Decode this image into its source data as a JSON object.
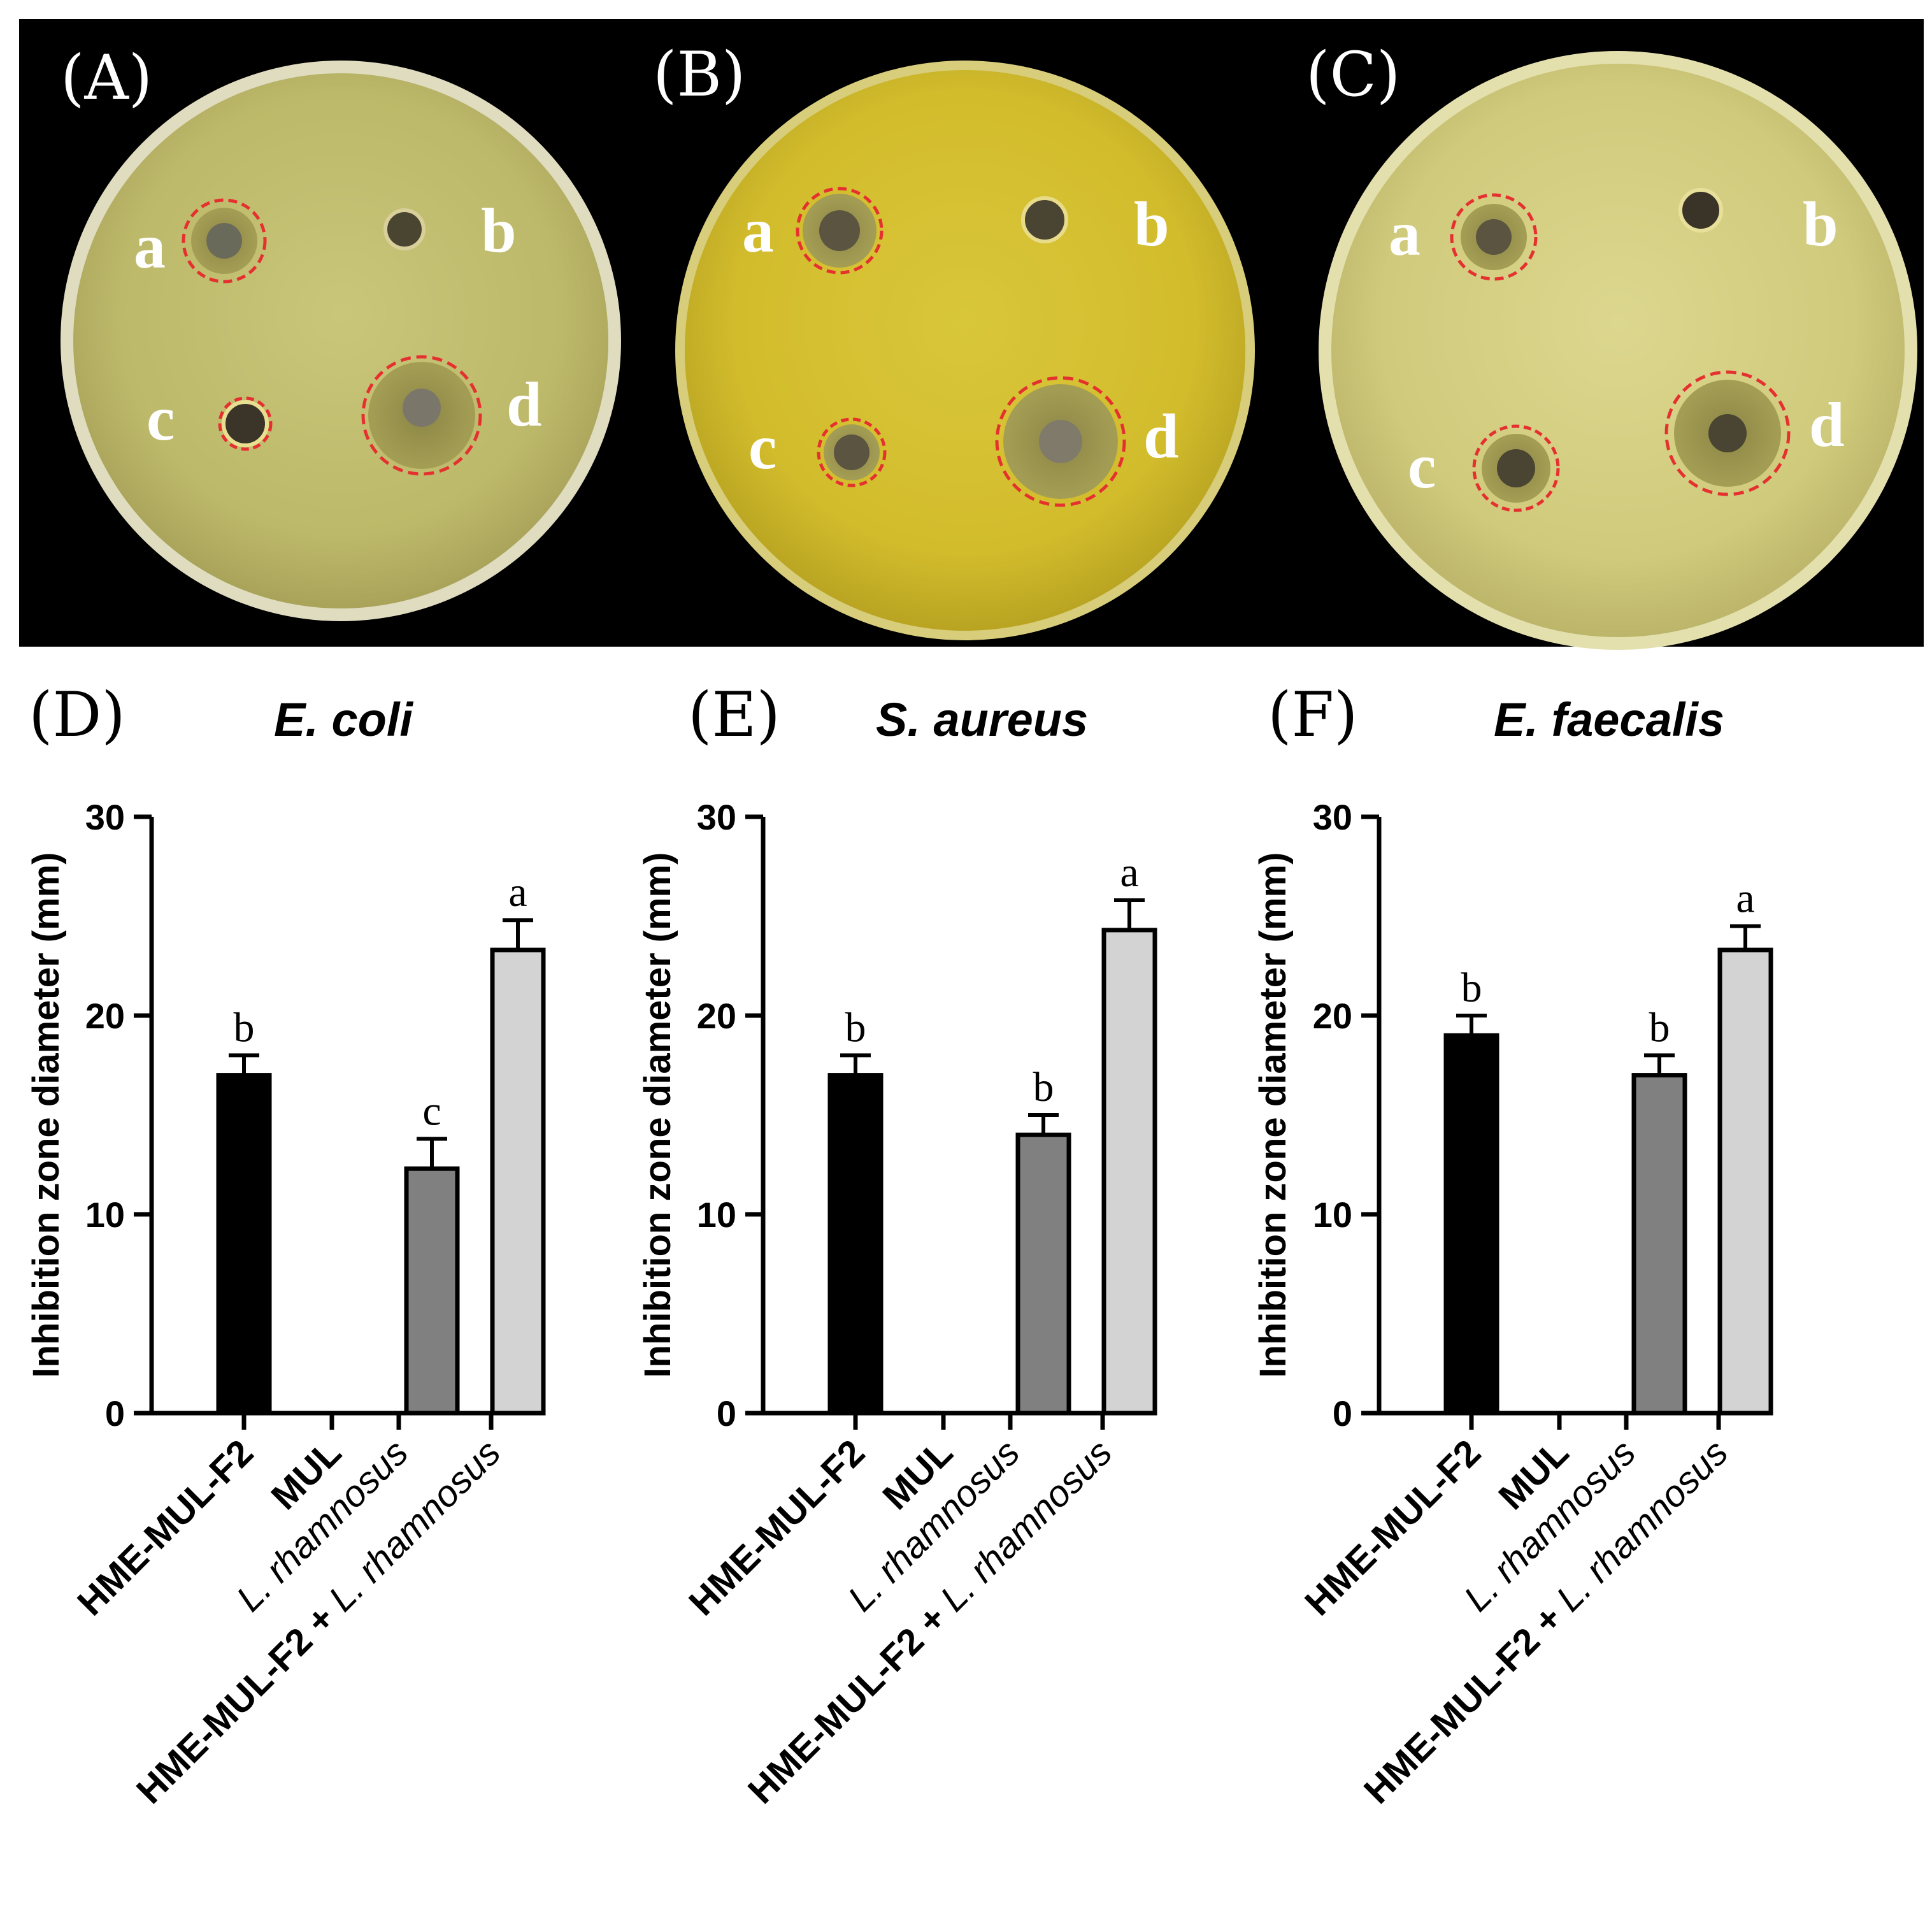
{
  "photos": {
    "panels": [
      {
        "label": "(A)",
        "wells": [
          "a",
          "b",
          "c",
          "d"
        ]
      },
      {
        "label": "(B)",
        "wells": [
          "a",
          "b",
          "c",
          "d"
        ]
      },
      {
        "label": "(C)",
        "wells": [
          "a",
          "b",
          "c",
          "d"
        ]
      }
    ],
    "colors": {
      "background": "#000000",
      "marker_circle": "#e53030"
    }
  },
  "chart_data": [
    {
      "type": "bar",
      "panel_label": "(D)",
      "title": "E. coli",
      "ylabel": "Inhibition zone diameter (mm)",
      "ylim": [
        0,
        30
      ],
      "yticks": [
        "0",
        "10",
        "20",
        "30"
      ],
      "categories": [
        "HME-MUL-F2",
        "MUL",
        "L. rhamnosus",
        "HME-MUL-F2 + L. rhamnosus"
      ],
      "values": [
        17.0,
        0,
        12.3,
        23.3
      ],
      "errors": [
        1.0,
        0,
        1.5,
        1.5
      ],
      "significance": [
        "b",
        "",
        "c",
        "a"
      ],
      "bar_colors": [
        "#000000",
        "#000000",
        "#808080",
        "#d3d3d3"
      ]
    },
    {
      "type": "bar",
      "panel_label": "(E)",
      "title": "S. aureus",
      "ylabel": "Inhibition zone diameter (mm)",
      "ylim": [
        0,
        30
      ],
      "yticks": [
        "0",
        "10",
        "20",
        "30"
      ],
      "categories": [
        "HME-MUL-F2",
        "MUL",
        "L. rhamnosus",
        "HME-MUL-F2 + L. rhamnosus"
      ],
      "values": [
        17.0,
        0,
        14.0,
        24.3
      ],
      "errors": [
        1.0,
        0,
        1.0,
        1.5
      ],
      "significance": [
        "b",
        "",
        "b",
        "a"
      ],
      "bar_colors": [
        "#000000",
        "#000000",
        "#808080",
        "#d3d3d3"
      ]
    },
    {
      "type": "bar",
      "panel_label": "(F)",
      "title": "E. faecalis",
      "ylabel": "Inhibition zone diameter (mm)",
      "ylim": [
        0,
        30
      ],
      "yticks": [
        "0",
        "10",
        "20",
        "30"
      ],
      "categories": [
        "HME-MUL-F2",
        "MUL",
        "L. rhamnosus",
        "HME-MUL-F2 + L. rhamnosus"
      ],
      "values": [
        19.0,
        0,
        17.0,
        23.3
      ],
      "errors": [
        1.0,
        0,
        1.0,
        1.2
      ],
      "significance": [
        "b",
        "",
        "b",
        "a"
      ],
      "bar_colors": [
        "#000000",
        "#000000",
        "#808080",
        "#d3d3d3"
      ]
    }
  ]
}
